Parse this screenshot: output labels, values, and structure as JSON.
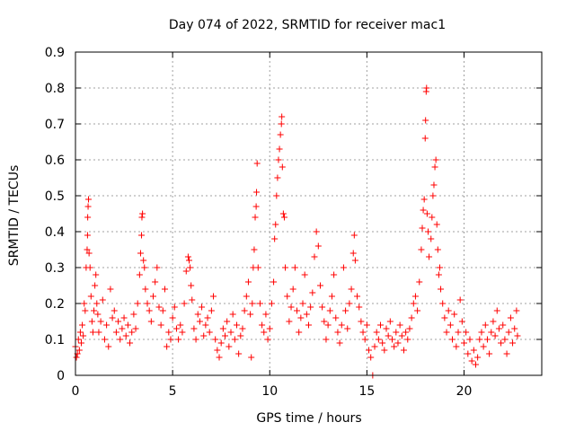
{
  "chart_data": {
    "type": "scatter",
    "title": "Day 074 of 2022, SRMTID for receiver mac1",
    "xlabel": "GPS time / hours",
    "ylabel": "SRMTID / TECUs",
    "xlim": [
      0,
      24
    ],
    "ylim": [
      0,
      0.9
    ],
    "xticks": [
      0,
      5,
      10,
      15,
      20
    ],
    "yticks": [
      0,
      0.1,
      0.2,
      0.3,
      0.4,
      0.5,
      0.6,
      0.7,
      0.8,
      0.9
    ],
    "xtick_labels": [
      "0",
      "5",
      "10",
      "15",
      "20"
    ],
    "ytick_labels": [
      "0",
      "0.1",
      "0.2",
      "0.3",
      "0.4",
      "0.5",
      "0.6",
      "0.7",
      "0.8",
      "0.9"
    ],
    "grid": true,
    "marker_color": "#ff0000",
    "marker": "+",
    "series": [
      {
        "name": "SRMTID",
        "points": [
          [
            0.0,
            0.08
          ],
          [
            0.05,
            0.05
          ],
          [
            0.1,
            0.06
          ],
          [
            0.15,
            0.1
          ],
          [
            0.2,
            0.07
          ],
          [
            0.25,
            0.12
          ],
          [
            0.3,
            0.09
          ],
          [
            0.35,
            0.14
          ],
          [
            0.4,
            0.11
          ],
          [
            0.45,
            0.2
          ],
          [
            0.5,
            0.18
          ],
          [
            0.55,
            0.3
          ],
          [
            0.6,
            0.35
          ],
          [
            0.62,
            0.39
          ],
          [
            0.63,
            0.44
          ],
          [
            0.65,
            0.47
          ],
          [
            0.67,
            0.49
          ],
          [
            0.7,
            0.34
          ],
          [
            0.75,
            0.3
          ],
          [
            0.8,
            0.22
          ],
          [
            0.85,
            0.15
          ],
          [
            0.9,
            0.12
          ],
          [
            0.95,
            0.18
          ],
          [
            1.0,
            0.25
          ],
          [
            1.05,
            0.28
          ],
          [
            1.1,
            0.2
          ],
          [
            1.15,
            0.17
          ],
          [
            1.2,
            0.12
          ],
          [
            1.3,
            0.15
          ],
          [
            1.4,
            0.21
          ],
          [
            1.5,
            0.1
          ],
          [
            1.6,
            0.14
          ],
          [
            1.7,
            0.08
          ],
          [
            1.8,
            0.24
          ],
          [
            1.9,
            0.16
          ],
          [
            2.0,
            0.18
          ],
          [
            2.1,
            0.12
          ],
          [
            2.2,
            0.15
          ],
          [
            2.3,
            0.1
          ],
          [
            2.4,
            0.13
          ],
          [
            2.5,
            0.16
          ],
          [
            2.6,
            0.11
          ],
          [
            2.7,
            0.14
          ],
          [
            2.8,
            0.09
          ],
          [
            2.9,
            0.12
          ],
          [
            3.0,
            0.17
          ],
          [
            3.1,
            0.13
          ],
          [
            3.2,
            0.2
          ],
          [
            3.3,
            0.28
          ],
          [
            3.35,
            0.34
          ],
          [
            3.4,
            0.39
          ],
          [
            3.42,
            0.44
          ],
          [
            3.45,
            0.45
          ],
          [
            3.5,
            0.32
          ],
          [
            3.55,
            0.3
          ],
          [
            3.6,
            0.24
          ],
          [
            3.7,
            0.2
          ],
          [
            3.8,
            0.18
          ],
          [
            3.9,
            0.15
          ],
          [
            4.0,
            0.22
          ],
          [
            4.1,
            0.26
          ],
          [
            4.2,
            0.3
          ],
          [
            4.3,
            0.19
          ],
          [
            4.4,
            0.14
          ],
          [
            4.5,
            0.18
          ],
          [
            4.6,
            0.24
          ],
          [
            4.7,
            0.08
          ],
          [
            4.8,
            0.12
          ],
          [
            4.9,
            0.1
          ],
          [
            5.0,
            0.16
          ],
          [
            5.1,
            0.19
          ],
          [
            5.2,
            0.13
          ],
          [
            5.3,
            0.1
          ],
          [
            5.4,
            0.14
          ],
          [
            5.5,
            0.12
          ],
          [
            5.6,
            0.2
          ],
          [
            5.7,
            0.29
          ],
          [
            5.8,
            0.33
          ],
          [
            5.85,
            0.32
          ],
          [
            5.9,
            0.3
          ],
          [
            5.95,
            0.25
          ],
          [
            6.0,
            0.21
          ],
          [
            6.1,
            0.13
          ],
          [
            6.2,
            0.1
          ],
          [
            6.3,
            0.17
          ],
          [
            6.4,
            0.15
          ],
          [
            6.5,
            0.19
          ],
          [
            6.6,
            0.11
          ],
          [
            6.7,
            0.14
          ],
          [
            6.8,
            0.16
          ],
          [
            6.9,
            0.12
          ],
          [
            7.0,
            0.18
          ],
          [
            7.1,
            0.22
          ],
          [
            7.2,
            0.1
          ],
          [
            7.3,
            0.07
          ],
          [
            7.4,
            0.05
          ],
          [
            7.5,
            0.09
          ],
          [
            7.6,
            0.13
          ],
          [
            7.7,
            0.11
          ],
          [
            7.8,
            0.15
          ],
          [
            7.9,
            0.08
          ],
          [
            8.0,
            0.12
          ],
          [
            8.1,
            0.17
          ],
          [
            8.2,
            0.1
          ],
          [
            8.3,
            0.14
          ],
          [
            8.4,
            0.06
          ],
          [
            8.5,
            0.11
          ],
          [
            8.6,
            0.13
          ],
          [
            8.7,
            0.18
          ],
          [
            8.8,
            0.22
          ],
          [
            8.9,
            0.26
          ],
          [
            9.0,
            0.17
          ],
          [
            9.05,
            0.05
          ],
          [
            9.1,
            0.2
          ],
          [
            9.15,
            0.3
          ],
          [
            9.2,
            0.35
          ],
          [
            9.25,
            0.44
          ],
          [
            9.3,
            0.47
          ],
          [
            9.32,
            0.51
          ],
          [
            9.35,
            0.59
          ],
          [
            9.4,
            0.3
          ],
          [
            9.5,
            0.2
          ],
          [
            9.6,
            0.14
          ],
          [
            9.7,
            0.12
          ],
          [
            9.8,
            0.17
          ],
          [
            9.9,
            0.1
          ],
          [
            10.0,
            0.13
          ],
          [
            10.1,
            0.2
          ],
          [
            10.2,
            0.26
          ],
          [
            10.25,
            0.38
          ],
          [
            10.3,
            0.42
          ],
          [
            10.35,
            0.5
          ],
          [
            10.4,
            0.55
          ],
          [
            10.45,
            0.6
          ],
          [
            10.5,
            0.63
          ],
          [
            10.55,
            0.67
          ],
          [
            10.6,
            0.7
          ],
          [
            10.62,
            0.72
          ],
          [
            10.65,
            0.58
          ],
          [
            10.7,
            0.45
          ],
          [
            10.75,
            0.44
          ],
          [
            10.8,
            0.3
          ],
          [
            10.9,
            0.22
          ],
          [
            11.0,
            0.15
          ],
          [
            11.1,
            0.19
          ],
          [
            11.2,
            0.24
          ],
          [
            11.3,
            0.3
          ],
          [
            11.4,
            0.18
          ],
          [
            11.5,
            0.12
          ],
          [
            11.6,
            0.16
          ],
          [
            11.7,
            0.2
          ],
          [
            11.8,
            0.28
          ],
          [
            11.9,
            0.17
          ],
          [
            12.0,
            0.14
          ],
          [
            12.1,
            0.19
          ],
          [
            12.2,
            0.23
          ],
          [
            12.3,
            0.33
          ],
          [
            12.4,
            0.4
          ],
          [
            12.5,
            0.36
          ],
          [
            12.6,
            0.25
          ],
          [
            12.7,
            0.19
          ],
          [
            12.8,
            0.15
          ],
          [
            12.9,
            0.1
          ],
          [
            13.0,
            0.14
          ],
          [
            13.1,
            0.18
          ],
          [
            13.2,
            0.22
          ],
          [
            13.3,
            0.28
          ],
          [
            13.4,
            0.16
          ],
          [
            13.5,
            0.12
          ],
          [
            13.6,
            0.09
          ],
          [
            13.7,
            0.14
          ],
          [
            13.8,
            0.3
          ],
          [
            13.9,
            0.18
          ],
          [
            14.0,
            0.13
          ],
          [
            14.1,
            0.2
          ],
          [
            14.2,
            0.24
          ],
          [
            14.3,
            0.34
          ],
          [
            14.35,
            0.39
          ],
          [
            14.4,
            0.32
          ],
          [
            14.5,
            0.22
          ],
          [
            14.6,
            0.19
          ],
          [
            14.7,
            0.15
          ],
          [
            14.8,
            0.12
          ],
          [
            14.9,
            0.1
          ],
          [
            15.0,
            0.14
          ],
          [
            15.1,
            0.07
          ],
          [
            15.2,
            0.05
          ],
          [
            15.3,
            0.0
          ],
          [
            15.4,
            0.08
          ],
          [
            15.5,
            0.12
          ],
          [
            15.6,
            0.1
          ],
          [
            15.7,
            0.14
          ],
          [
            15.8,
            0.09
          ],
          [
            15.9,
            0.07
          ],
          [
            16.0,
            0.13
          ],
          [
            16.1,
            0.11
          ],
          [
            16.2,
            0.15
          ],
          [
            16.3,
            0.1
          ],
          [
            16.4,
            0.08
          ],
          [
            16.5,
            0.12
          ],
          [
            16.6,
            0.09
          ],
          [
            16.7,
            0.14
          ],
          [
            16.8,
            0.11
          ],
          [
            16.9,
            0.07
          ],
          [
            17.0,
            0.12
          ],
          [
            17.1,
            0.1
          ],
          [
            17.2,
            0.13
          ],
          [
            17.3,
            0.16
          ],
          [
            17.4,
            0.2
          ],
          [
            17.5,
            0.22
          ],
          [
            17.6,
            0.18
          ],
          [
            17.7,
            0.26
          ],
          [
            17.8,
            0.35
          ],
          [
            17.85,
            0.41
          ],
          [
            17.9,
            0.46
          ],
          [
            17.95,
            0.49
          ],
          [
            18.0,
            0.66
          ],
          [
            18.02,
            0.71
          ],
          [
            18.05,
            0.79
          ],
          [
            18.07,
            0.8
          ],
          [
            18.1,
            0.45
          ],
          [
            18.15,
            0.4
          ],
          [
            18.2,
            0.33
          ],
          [
            18.3,
            0.38
          ],
          [
            18.35,
            0.44
          ],
          [
            18.4,
            0.5
          ],
          [
            18.45,
            0.53
          ],
          [
            18.5,
            0.58
          ],
          [
            18.55,
            0.6
          ],
          [
            18.6,
            0.42
          ],
          [
            18.65,
            0.35
          ],
          [
            18.7,
            0.28
          ],
          [
            18.75,
            0.3
          ],
          [
            18.8,
            0.24
          ],
          [
            18.9,
            0.2
          ],
          [
            19.0,
            0.16
          ],
          [
            19.1,
            0.12
          ],
          [
            19.2,
            0.18
          ],
          [
            19.3,
            0.14
          ],
          [
            19.4,
            0.1
          ],
          [
            19.5,
            0.17
          ],
          [
            19.6,
            0.08
          ],
          [
            19.7,
            0.12
          ],
          [
            19.8,
            0.21
          ],
          [
            19.9,
            0.15
          ],
          [
            20.0,
            0.09
          ],
          [
            20.1,
            0.12
          ],
          [
            20.2,
            0.06
          ],
          [
            20.3,
            0.1
          ],
          [
            20.4,
            0.04
          ],
          [
            20.5,
            0.07
          ],
          [
            20.6,
            0.03
          ],
          [
            20.7,
            0.05
          ],
          [
            20.8,
            0.1
          ],
          [
            20.9,
            0.12
          ],
          [
            21.0,
            0.08
          ],
          [
            21.1,
            0.14
          ],
          [
            21.2,
            0.1
          ],
          [
            21.3,
            0.06
          ],
          [
            21.4,
            0.12
          ],
          [
            21.5,
            0.15
          ],
          [
            21.6,
            0.11
          ],
          [
            21.7,
            0.18
          ],
          [
            21.8,
            0.13
          ],
          [
            21.9,
            0.09
          ],
          [
            22.0,
            0.14
          ],
          [
            22.1,
            0.1
          ],
          [
            22.2,
            0.06
          ],
          [
            22.3,
            0.12
          ],
          [
            22.4,
            0.16
          ],
          [
            22.5,
            0.09
          ],
          [
            22.6,
            0.13
          ],
          [
            22.7,
            0.18
          ],
          [
            22.75,
            0.11
          ]
        ]
      }
    ]
  }
}
